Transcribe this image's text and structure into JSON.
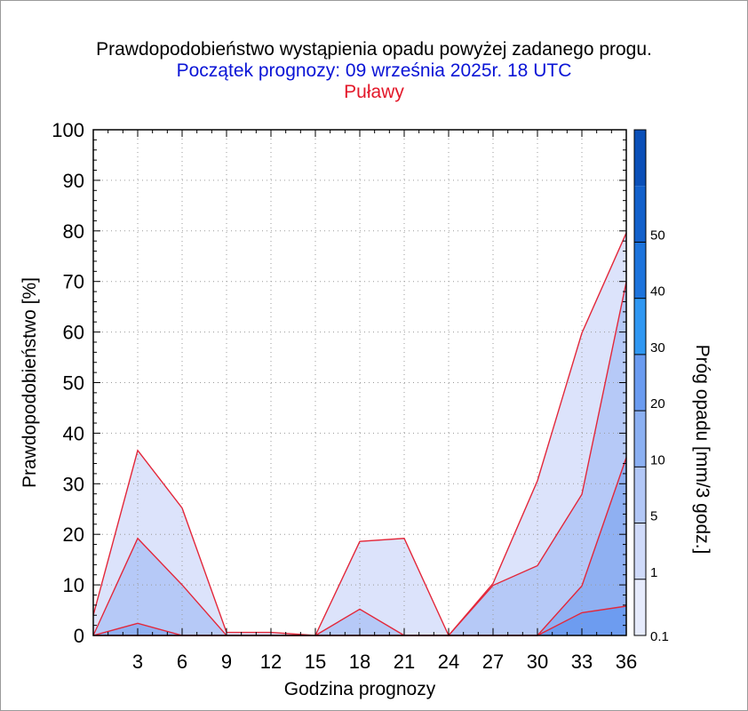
{
  "title": "Prawdopodobieństwo wystąpienia opadu powyżej zadanego progu.",
  "subtitle": "Początek prognozy: 09 września 2025r. 18 UTC",
  "location": "Puławy",
  "chart_data": {
    "type": "area",
    "xlabel": "Godzina prognozy",
    "ylabel": "Prawdopodobieństwo [%]",
    "xlim": [
      0,
      36
    ],
    "ylim": [
      0,
      100
    ],
    "x_ticks": [
      3,
      6,
      9,
      12,
      15,
      18,
      21,
      24,
      27,
      30,
      33,
      36
    ],
    "y_ticks": [
      0,
      10,
      20,
      30,
      40,
      50,
      60,
      70,
      80,
      90,
      100
    ],
    "grid": true,
    "x": [
      0,
      3,
      6,
      9,
      12,
      15,
      18,
      21,
      24,
      27,
      30,
      33,
      36
    ],
    "series": [
      {
        "name": "0.1",
        "values": [
          4,
          36.6,
          25.2,
          0.6,
          0.6,
          0,
          18.6,
          19.2,
          0,
          10.3,
          30.6,
          59.8,
          79.6
        ],
        "color": "#dce3fb"
      },
      {
        "name": "1",
        "values": [
          0,
          19.2,
          10,
          0,
          0,
          0,
          5.2,
          0,
          0,
          9.9,
          13.8,
          27.9,
          69.9
        ],
        "color": "#b6c9f7"
      },
      {
        "name": "5",
        "values": [
          0,
          2.4,
          0,
          0,
          0,
          0,
          0,
          0,
          0,
          0,
          0,
          9.8,
          35.2
        ],
        "color": "#8fb0f2"
      },
      {
        "name": "10",
        "values": [
          0,
          0,
          0,
          0,
          0,
          0,
          0,
          0,
          0,
          0,
          0,
          4.5,
          5.8
        ],
        "color": "#6d9cf0"
      }
    ],
    "line_color": "#e3273a",
    "colorbar": {
      "label": "Próg opadu [mm/3 godz.]",
      "levels": [
        "0.1",
        "1",
        "5",
        "10",
        "20",
        "30",
        "40",
        "50"
      ],
      "colors": [
        "#e6ebfc",
        "#cfdaf9",
        "#b2c7f6",
        "#8bb0f2",
        "#6a9bf0",
        "#2f97f2",
        "#1c73dc",
        "#1260cb",
        "#0a4fb8"
      ]
    }
  }
}
